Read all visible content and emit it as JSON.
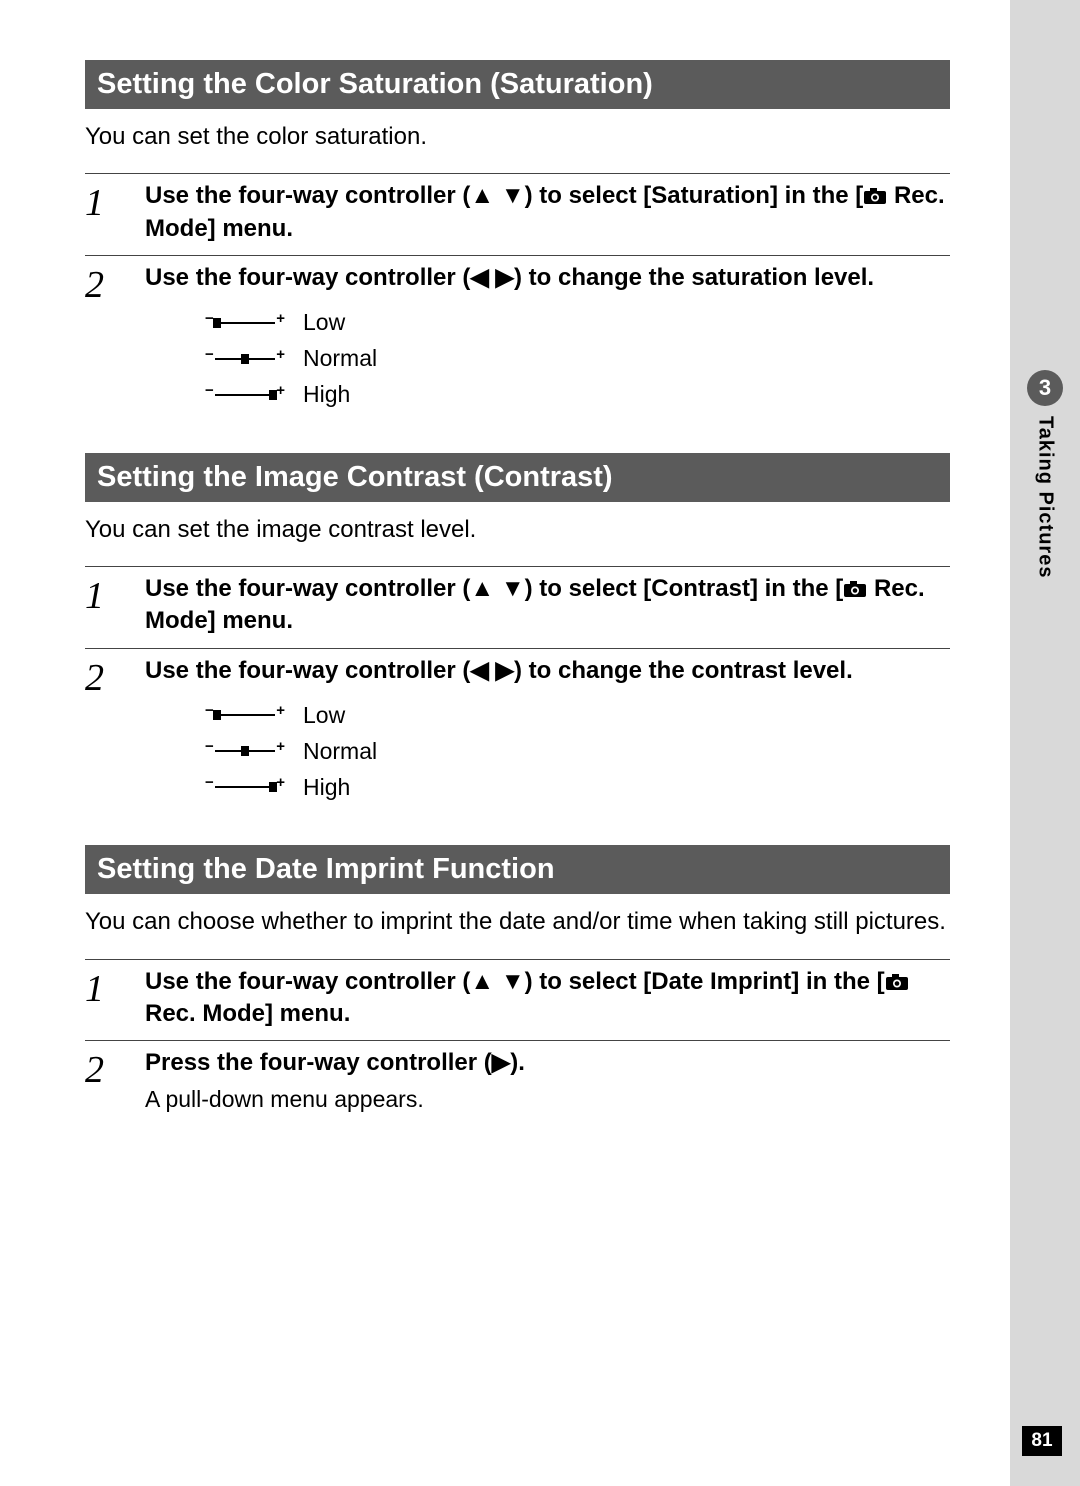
{
  "chapter": {
    "number": "3",
    "label": "Taking Pictures"
  },
  "page_number": "81",
  "colors": {
    "header_bg": "#5b5b5b",
    "header_text": "#ffffff",
    "gutter_bg": "#d9d9d9",
    "page_bg": "#ffffff",
    "text": "#000000",
    "pagenum_bg": "#000000"
  },
  "glyphs": {
    "up": "▲",
    "down": "▼",
    "left": "◀",
    "right": "▶",
    "minus": "−",
    "plus": "+"
  },
  "levels": [
    "Low",
    "Normal",
    "High"
  ],
  "sections": [
    {
      "title": "Setting the Color Saturation (Saturation)",
      "intro": "You can set the color saturation.",
      "steps": [
        {
          "num": "1",
          "text_pre": "Use the four-way controller (",
          "text_glyph1": "▲",
          "text_glyph2": "▼",
          "text_mid": ") to select [Saturation] in the [",
          "text_post": " Rec. Mode] menu.",
          "has_camera_icon": true,
          "show_levels": false
        },
        {
          "num": "2",
          "text_pre": "Use the four-way controller (",
          "text_glyph1": "◀",
          "text_glyph2": "▶",
          "text_mid": ") to change the saturation level.",
          "text_post": "",
          "has_camera_icon": false,
          "show_levels": true
        }
      ]
    },
    {
      "title": "Setting the Image Contrast (Contrast)",
      "intro": "You can set the image contrast level.",
      "steps": [
        {
          "num": "1",
          "text_pre": "Use the four-way controller (",
          "text_glyph1": "▲",
          "text_glyph2": "▼",
          "text_mid": ") to select [Contrast] in the [",
          "text_post": " Rec. Mode] menu.",
          "has_camera_icon": true,
          "show_levels": false
        },
        {
          "num": "2",
          "text_pre": "Use the four-way controller (",
          "text_glyph1": "◀",
          "text_glyph2": "▶",
          "text_mid": ") to change the contrast level.",
          "text_post": "",
          "has_camera_icon": false,
          "show_levels": true
        }
      ]
    },
    {
      "title": "Setting the Date Imprint Function",
      "intro": "You can choose whether to imprint the date and/or time when taking still pictures.",
      "steps": [
        {
          "num": "1",
          "text_pre": "Use the four-way controller (",
          "text_glyph1": "▲",
          "text_glyph2": "▼",
          "text_mid": ") to select [Date Imprint] in the [",
          "text_post": " Rec. Mode] menu.",
          "has_camera_icon": true,
          "show_levels": false
        },
        {
          "num": "2",
          "text_pre": "Press the four-way controller (",
          "text_glyph1": "▶",
          "text_glyph2": "",
          "text_mid": ").",
          "text_post": "",
          "has_camera_icon": false,
          "show_levels": false,
          "sub": "A pull-down menu appears."
        }
      ]
    }
  ]
}
